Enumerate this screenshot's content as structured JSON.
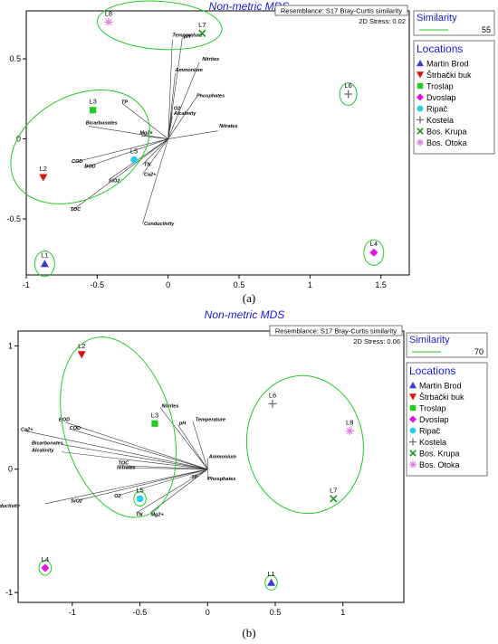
{
  "chart_data": [
    {
      "type": "scatter",
      "title": "Non-metric MDS",
      "resemblance": "Resemblance: S17 Bray-Curtis similarity",
      "stress": "2D Stress: 0.02",
      "caption": "(a)",
      "xlim": [
        -1.0,
        1.7
      ],
      "ylim": [
        -0.85,
        0.8
      ],
      "xticks": [
        -1,
        -0.5,
        0,
        0.5,
        1,
        1.5
      ],
      "yticks": [
        -0.5,
        0,
        0.5
      ],
      "similarity_title": "Similarity",
      "similarity_value": "55",
      "legend_title": "Locations",
      "legend": [
        {
          "label": "Martin Brod",
          "shape": "tri-up",
          "color": "#3a3adc"
        },
        {
          "label": "Štrbački buk",
          "shape": "tri-down",
          "color": "#e01010"
        },
        {
          "label": "Troslap",
          "shape": "square",
          "color": "#22cc22"
        },
        {
          "label": "Dvoslap",
          "shape": "diamond",
          "color": "#e010e0"
        },
        {
          "label": "Ripač",
          "shape": "circle",
          "color": "#22d0e8"
        },
        {
          "label": "Kostela",
          "shape": "plus",
          "color": "#707070"
        },
        {
          "label": "Bos. Krupa",
          "shape": "cross",
          "color": "#209020"
        },
        {
          "label": "Bos. Otoka",
          "shape": "star",
          "color": "#e080e0"
        }
      ],
      "points": [
        {
          "label": "L1",
          "x": -0.87,
          "y": -0.78,
          "loc": 0
        },
        {
          "label": "L2",
          "x": -0.88,
          "y": -0.24,
          "loc": 1
        },
        {
          "label": "L3",
          "x": -0.53,
          "y": 0.18,
          "loc": 2
        },
        {
          "label": "L4",
          "x": 1.45,
          "y": -0.71,
          "loc": 3
        },
        {
          "label": "L5",
          "x": -0.24,
          "y": -0.13,
          "loc": 4
        },
        {
          "label": "L6",
          "x": 1.27,
          "y": 0.28,
          "loc": 5
        },
        {
          "label": "L7",
          "x": 0.24,
          "y": 0.66,
          "loc": 6
        },
        {
          "label": "L8",
          "x": -0.42,
          "y": 0.73,
          "loc": 7
        }
      ],
      "vectors": [
        {
          "label": "Temperature",
          "x": 0.03,
          "y": 0.62,
          "lx": 0.03,
          "ly": 0.64
        },
        {
          "label": "pH",
          "x": 0.1,
          "y": 0.63,
          "lx": 0.11,
          "ly": 0.63
        },
        {
          "label": "Nitrites",
          "x": 0.22,
          "y": 0.48,
          "lx": 0.24,
          "ly": 0.49
        },
        {
          "label": "Ammonium",
          "x": 0.05,
          "y": 0.41,
          "lx": 0.05,
          "ly": 0.42
        },
        {
          "label": "Phosphates",
          "x": 0.2,
          "y": 0.26,
          "lx": 0.2,
          "ly": 0.26
        },
        {
          "label": "O2",
          "x": 0.03,
          "y": 0.17,
          "lx": 0.04,
          "ly": 0.18
        },
        {
          "label": "Alcalinity",
          "x": 0.03,
          "y": 0.14,
          "lx": 0.04,
          "ly": 0.15
        },
        {
          "label": "Nitrates",
          "x": 0.35,
          "y": 0.05,
          "lx": 0.36,
          "ly": 0.07
        },
        {
          "label": "TP",
          "x": -0.32,
          "y": 0.22,
          "lx": -0.33,
          "ly": 0.22
        },
        {
          "label": "Mg2+",
          "x": -0.19,
          "y": 0.02,
          "lx": -0.2,
          "ly": 0.03
        },
        {
          "label": "Bicarbonates",
          "x": -0.56,
          "y": 0.08,
          "lx": -0.58,
          "ly": 0.09
        },
        {
          "label": "COD",
          "x": -0.68,
          "y": -0.15,
          "lx": -0.68,
          "ly": -0.15
        },
        {
          "label": "BOD",
          "x": -0.59,
          "y": -0.18,
          "lx": -0.59,
          "ly": -0.18
        },
        {
          "label": "SiO2",
          "x": -0.41,
          "y": -0.25,
          "lx": -0.42,
          "ly": -0.27
        },
        {
          "label": "TOC",
          "x": -0.68,
          "y": -0.45,
          "lx": -0.69,
          "ly": -0.45
        },
        {
          "label": "TN",
          "x": -0.18,
          "y": -0.16,
          "lx": -0.17,
          "ly": -0.17
        },
        {
          "label": "Ca2+",
          "x": -0.18,
          "y": -0.22,
          "lx": -0.17,
          "ly": -0.23
        },
        {
          "label": "Conductivity",
          "x": -0.18,
          "y": -0.53,
          "lx": -0.17,
          "ly": -0.54
        }
      ],
      "ellipses": [
        {
          "cx": -0.62,
          "cy": -0.05,
          "rx": 0.52,
          "ry": 0.32,
          "rot": -28
        },
        {
          "cx": -0.06,
          "cy": 0.71,
          "rx": 0.44,
          "ry": 0.15,
          "rot": 4
        },
        {
          "cx": 1.27,
          "cy": 0.28,
          "rx": 0.06,
          "ry": 0.07,
          "rot": 0
        },
        {
          "cx": -0.87,
          "cy": -0.78,
          "rx": 0.07,
          "ry": 0.08,
          "rot": 0
        },
        {
          "cx": 1.45,
          "cy": -0.71,
          "rx": 0.07,
          "ry": 0.08,
          "rot": 0
        }
      ]
    },
    {
      "type": "scatter",
      "title": "Non-metric MDS",
      "resemblance": "Resemblance: S17 Bray-Curtis similarity",
      "stress": "2D Stress: 0.06",
      "caption": "(b)",
      "xlim": [
        -1.4,
        1.45
      ],
      "ylim": [
        -1.08,
        1.12
      ],
      "xticks": [
        -1,
        -0.5,
        0,
        0.5,
        1
      ],
      "yticks": [
        -1,
        0,
        1
      ],
      "similarity_title": "Similarity",
      "similarity_value": "70",
      "legend_title": "Locations",
      "legend": [
        {
          "label": "Martin Brod",
          "shape": "tri-up",
          "color": "#3a3adc"
        },
        {
          "label": "Štrbački buk",
          "shape": "tri-down",
          "color": "#e01010"
        },
        {
          "label": "Troslap",
          "shape": "square",
          "color": "#22cc22"
        },
        {
          "label": "Dvoslap",
          "shape": "diamond",
          "color": "#e010e0"
        },
        {
          "label": "Ripač",
          "shape": "circle",
          "color": "#22d0e8"
        },
        {
          "label": "Kostela",
          "shape": "plus",
          "color": "#707070"
        },
        {
          "label": "Bos. Krupa",
          "shape": "cross",
          "color": "#209020"
        },
        {
          "label": "Bos. Otoka",
          "shape": "star",
          "color": "#e080e0"
        }
      ],
      "points": [
        {
          "label": "L1",
          "x": 0.47,
          "y": -0.92,
          "loc": 0
        },
        {
          "label": "L2",
          "x": -0.93,
          "y": 0.93,
          "loc": 1
        },
        {
          "label": "L3",
          "x": -0.39,
          "y": 0.37,
          "loc": 2
        },
        {
          "label": "L4",
          "x": -1.2,
          "y": -0.8,
          "loc": 3
        },
        {
          "label": "L5",
          "x": -0.5,
          "y": -0.24,
          "loc": 4
        },
        {
          "label": "L6",
          "x": 0.48,
          "y": 0.53,
          "loc": 5
        },
        {
          "label": "L7",
          "x": 0.93,
          "y": -0.24,
          "loc": 6
        },
        {
          "label": "L8",
          "x": 1.05,
          "y": 0.31,
          "loc": 7
        }
      ],
      "vectors": [
        {
          "label": "BOD",
          "x": -1.05,
          "y": 0.38,
          "lx": -1.1,
          "ly": 0.39
        },
        {
          "label": "Ca2+",
          "x": -1.35,
          "y": 0.31,
          "lx": -1.38,
          "ly": 0.31
        },
        {
          "label": "COD",
          "x": -1.0,
          "y": 0.32,
          "lx": -1.02,
          "ly": 0.32
        },
        {
          "label": "Bicarbonates",
          "x": -1.08,
          "y": 0.2,
          "lx": -1.3,
          "ly": 0.2
        },
        {
          "label": "Alcalinity",
          "x": -1.08,
          "y": 0.14,
          "lx": -1.3,
          "ly": 0.14
        },
        {
          "label": "TOC",
          "x": -0.65,
          "y": 0.03,
          "lx": -0.66,
          "ly": 0.04
        },
        {
          "label": "Nitrates",
          "x": -0.62,
          "y": 0.01,
          "lx": -0.67,
          "ly": 0.0
        },
        {
          "label": "Nitrites",
          "x": -0.35,
          "y": 0.5,
          "lx": -0.34,
          "ly": 0.5
        },
        {
          "label": "pH",
          "x": -0.22,
          "y": 0.36,
          "lx": -0.21,
          "ly": 0.36
        },
        {
          "label": "Temperature",
          "x": -0.11,
          "y": 0.39,
          "lx": -0.09,
          "ly": 0.39
        },
        {
          "label": "Ammonium",
          "x": 0.0,
          "y": 0.09,
          "lx": 0.01,
          "ly": 0.09
        },
        {
          "label": "TP",
          "x": -0.13,
          "y": -0.07,
          "lx": -0.12,
          "ly": -0.08
        },
        {
          "label": "Phosphates",
          "x": 0.0,
          "y": -0.08,
          "lx": 0.0,
          "ly": -0.09
        },
        {
          "label": "Conductivity",
          "x": -1.2,
          "y": -0.28,
          "lx": -1.61,
          "ly": -0.31
        },
        {
          "label": "SiO2",
          "x": -0.95,
          "y": -0.25,
          "lx": -1.01,
          "ly": -0.27
        },
        {
          "label": "O2",
          "x": -0.65,
          "y": -0.21,
          "lx": -0.69,
          "ly": -0.23
        },
        {
          "label": "TN",
          "x": -0.52,
          "y": -0.35,
          "lx": -0.53,
          "ly": -0.38
        },
        {
          "label": "Mg2+",
          "x": -0.42,
          "y": -0.35,
          "lx": -0.42,
          "ly": -0.38
        }
      ],
      "ellipses": [
        {
          "cx": -0.66,
          "cy": 0.34,
          "rx": 0.4,
          "ry": 0.75,
          "rot": -16
        },
        {
          "cx": 0.72,
          "cy": 0.2,
          "rx": 0.43,
          "ry": 0.56,
          "rot": -8
        },
        {
          "cx": -0.5,
          "cy": -0.24,
          "rx": 0.045,
          "ry": 0.06,
          "rot": 0
        },
        {
          "cx": -1.2,
          "cy": -0.8,
          "rx": 0.045,
          "ry": 0.06,
          "rot": 0
        },
        {
          "cx": 0.47,
          "cy": -0.92,
          "rx": 0.045,
          "ry": 0.06,
          "rot": 0
        }
      ]
    }
  ]
}
